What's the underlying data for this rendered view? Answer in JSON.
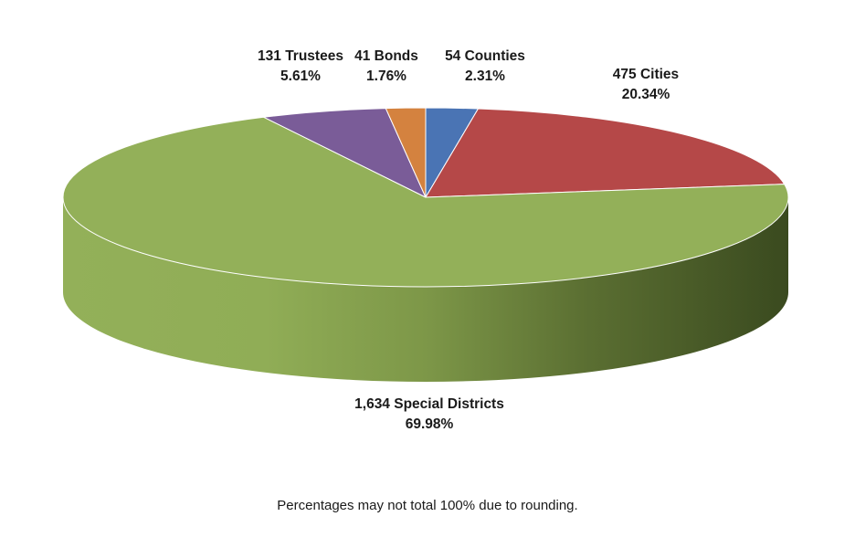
{
  "chart_data": {
    "type": "pie",
    "style": "3d",
    "slices": [
      {
        "name": "Counties",
        "count": "54",
        "value": 54,
        "percent_label": "2.31%",
        "percent": 2.31,
        "color": "#4a74b4"
      },
      {
        "name": "Cities",
        "count": "475",
        "value": 475,
        "percent_label": "20.34%",
        "percent": 20.34,
        "color": "#b54848"
      },
      {
        "name": "Special Districts",
        "count": "1,634",
        "value": 1634,
        "percent_label": "69.98%",
        "percent": 69.98,
        "color": "#93b059"
      },
      {
        "name": "Trustees",
        "count": "131",
        "value": 131,
        "percent_label": "5.61%",
        "percent": 5.61,
        "color": "#7a5c98"
      },
      {
        "name": "Bonds",
        "count": "41",
        "value": 41,
        "percent_label": "1.76%",
        "percent": 1.76,
        "color": "#d4823f"
      }
    ],
    "footnote": "Percentages may not total 100% due to rounding."
  }
}
